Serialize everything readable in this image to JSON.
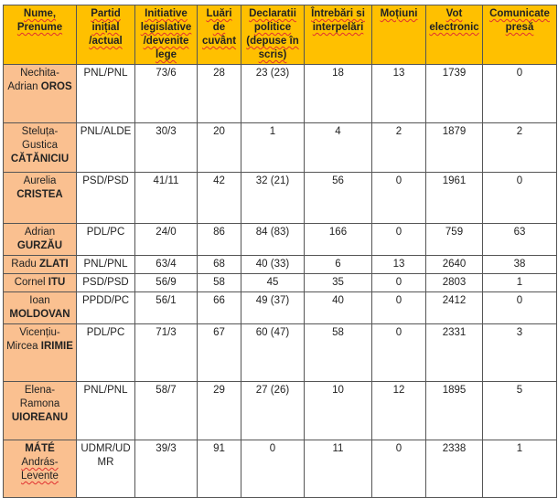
{
  "headers": [
    "Nume, Prenume",
    "Partid inițial /actual",
    "Initiative legislative /devenite lege",
    "Luări de cuvânt",
    "Declaratii politice (depuse în scris)",
    "Întrebări si interpelări",
    "Moțiuni",
    "Vot electronic",
    "Comunicate presă"
  ],
  "rows": [
    {
      "first": "Nechita-Adrian",
      "last": "OROS",
      "last_first": false,
      "party": "PNL/PNL",
      "initiatives": "73/6",
      "speeches": "28",
      "declarations": "23 (23)",
      "questions": "18",
      "motions": "13",
      "votes": "1739",
      "press": "0"
    },
    {
      "first": "Steluța-Gustica",
      "last": "CĂTĂNICIU",
      "last_first": false,
      "party": "PNL/ALDE",
      "initiatives": "30/3",
      "speeches": "20",
      "declarations": "1",
      "questions": "4",
      "motions": "2",
      "votes": "1879",
      "press": "2"
    },
    {
      "first": "Aurelia",
      "last": "CRISTEA",
      "last_first": false,
      "party": "PSD/PSD",
      "initiatives": "41/11",
      "speeches": "42",
      "declarations": "32 (21)",
      "questions": "56",
      "motions": "0",
      "votes": "1961",
      "press": "0"
    },
    {
      "first": "Adrian",
      "last": "GURZĂU",
      "last_first": false,
      "party": "PDL/PC",
      "initiatives": "24/0",
      "speeches": "86",
      "declarations": "84 (83)",
      "questions": "166",
      "motions": "0",
      "votes": "759",
      "press": "63"
    },
    {
      "first": "Radu",
      "last": "ZLATI",
      "last_first": false,
      "party": "PNL/PNL",
      "initiatives": "63/4",
      "speeches": "68",
      "declarations": "40 (33)",
      "questions": "6",
      "motions": "13",
      "votes": "2640",
      "press": "38"
    },
    {
      "first": "Cornel",
      "last": "ITU",
      "last_first": false,
      "party": "PSD/PSD",
      "initiatives": "56/9",
      "speeches": "58",
      "declarations": "45",
      "questions": "35",
      "motions": "0",
      "votes": "2803",
      "press": "1"
    },
    {
      "first": "Ioan",
      "last": "MOLDOVAN",
      "last_first": false,
      "party": "PPDD/PC",
      "initiatives": "56/1",
      "speeches": "66",
      "declarations": "49 (37)",
      "questions": "40",
      "motions": "0",
      "votes": "2412",
      "press": "0"
    },
    {
      "first": "Vicențiu-Mircea",
      "last": "IRIMIE",
      "last_first": false,
      "party": "PDL/PC",
      "initiatives": "71/3",
      "speeches": "67",
      "declarations": "60 (47)",
      "questions": "58",
      "motions": "0",
      "votes": "2331",
      "press": "3"
    },
    {
      "first": "Elena-Ramona",
      "last": "UIOREANU",
      "last_first": false,
      "party": "PNL/PNL",
      "initiatives": "58/7",
      "speeches": "29",
      "declarations": "27 (26)",
      "questions": "10",
      "motions": "12",
      "votes": "1895",
      "press": "5"
    },
    {
      "first": "András-Levente",
      "last": "MÁTÉ",
      "last_first": true,
      "party": "UDMR/UDMR",
      "initiatives": "39/3",
      "speeches": "91",
      "declarations": "0",
      "questions": "11",
      "motions": "0",
      "votes": "2338",
      "press": "1"
    }
  ],
  "colors": {
    "header_bg": "#FFC000",
    "name_bg": "#FAC090"
  }
}
